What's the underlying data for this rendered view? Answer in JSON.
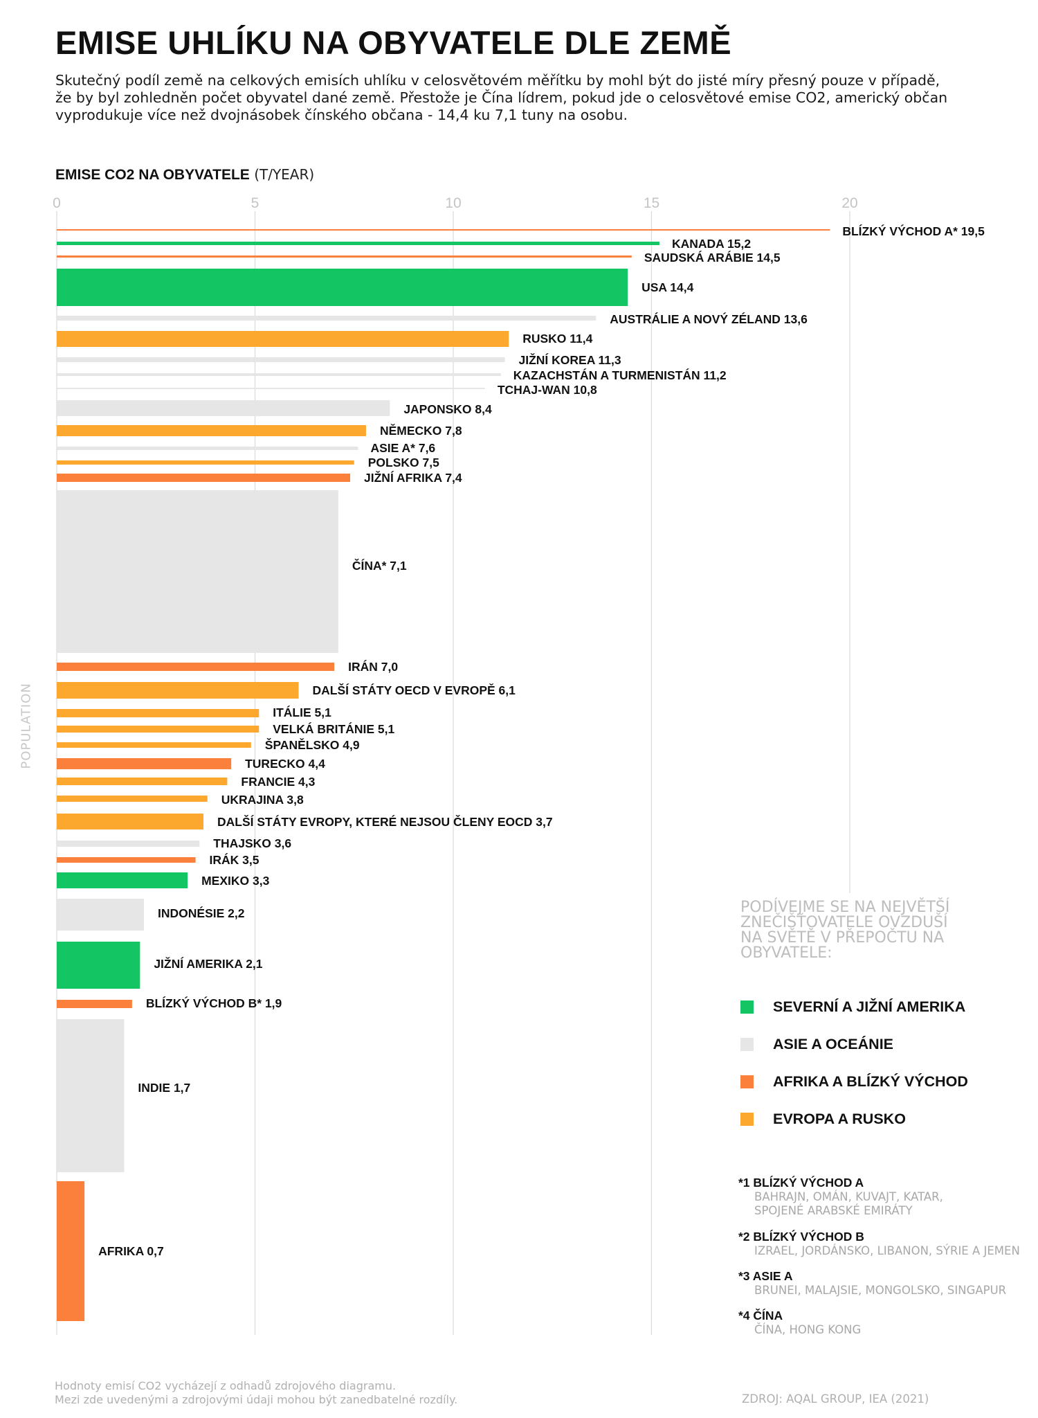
{
  "title": "EMISE UHLÍKU NA OBYVATELE DLE ZEMĚ",
  "subtitle": "Skutečný podíl země na celkových emisích uhlíku v celosvětovém měřítku by mohl být do jisté míry přesný pouze v případě, že by byl zohledněn počet obyvatel dané země. Přestože je Čína lídrem, pokud jde o celosvětové emise CO2, americký občan vyprodukuje více než dvojnásobek čínského občana - 14,4 ku 7,1 tuny na osobu.",
  "colors": {
    "americas": "#14c564",
    "asia": "#e6e6e6",
    "africa_me": "#fb803c",
    "europe": "#fca72d",
    "grid": "#d9d9d9",
    "tick": "#c4c4c4"
  },
  "chart_data": {
    "type": "bar",
    "orientation": "horizontal",
    "title": "EMISE CO2 NA OBYVATELE",
    "title_unit": "(T/YEAR)",
    "xlabel": "EMISE CO2 NA OBYVATELE (T/YEAR)",
    "ylabel": "POPULATION",
    "xlim": [
      0,
      20
    ],
    "xticks": [
      0,
      5,
      10,
      15,
      20
    ],
    "grid": true,
    "note": "bar thickness is proportional to population",
    "bars": [
      {
        "label": "BLÍZKÝ VÝCHOD A* 19,5",
        "value": 19.5,
        "region": "africa_me"
      },
      {
        "label": "KANADA 15,2",
        "value": 15.2,
        "region": "americas"
      },
      {
        "label": "SAUDSKÁ ARÁBIE 14,5",
        "value": 14.5,
        "region": "africa_me"
      },
      {
        "label": "USA 14,4",
        "value": 14.4,
        "region": "americas"
      },
      {
        "label": "AUSTRÁLIE A NOVÝ ZÉLAND 13,6",
        "value": 13.6,
        "region": "asia"
      },
      {
        "label": "RUSKO 11,4",
        "value": 11.4,
        "region": "europe"
      },
      {
        "label": "JIŽNÍ KOREA 11,3",
        "value": 11.3,
        "region": "asia"
      },
      {
        "label": "KAZACHSTÁN A TURMENISTÁN 11,2",
        "value": 11.2,
        "region": "asia"
      },
      {
        "label": "TCHAJ-WAN 10,8",
        "value": 10.8,
        "region": "asia"
      },
      {
        "label": "JAPONSKO 8,4",
        "value": 8.4,
        "region": "asia"
      },
      {
        "label": "NĚMECKO 7,8",
        "value": 7.8,
        "region": "europe"
      },
      {
        "label": "ASIE A* 7,6",
        "value": 7.6,
        "region": "asia"
      },
      {
        "label": "POLSKO 7,5",
        "value": 7.5,
        "region": "europe"
      },
      {
        "label": "JIŽNÍ AFRIKA 7,4",
        "value": 7.4,
        "region": "africa_me"
      },
      {
        "label": "ČÍNA* 7,1",
        "value": 7.1,
        "region": "asia"
      },
      {
        "label": "IRÁN 7,0",
        "value": 7.0,
        "region": "africa_me"
      },
      {
        "label": "DALŠÍ STÁTY OECD V EVROPĚ 6,1",
        "value": 6.1,
        "region": "europe"
      },
      {
        "label": "ITÁLIE 5,1",
        "value": 5.1,
        "region": "europe"
      },
      {
        "label": "VELKÁ BRITÁNIE 5,1",
        "value": 5.1,
        "region": "europe"
      },
      {
        "label": "ŠPANĚLSKO 4,9",
        "value": 4.9,
        "region": "europe"
      },
      {
        "label": "TURECKO 4,4",
        "value": 4.4,
        "region": "africa_me"
      },
      {
        "label": "FRANCIE 4,3",
        "value": 4.3,
        "region": "europe"
      },
      {
        "label": "UKRAJINA 3,8",
        "value": 3.8,
        "region": "europe"
      },
      {
        "label": "DALŠÍ STÁTY EVROPY, KTERÉ NEJSOU ČLENY EOCD 3,7",
        "value": 3.7,
        "region": "europe"
      },
      {
        "label": "THAJSKO 3,6",
        "value": 3.6,
        "region": "asia"
      },
      {
        "label": "IRÁK 3,5",
        "value": 3.5,
        "region": "africa_me"
      },
      {
        "label": "MEXIKO 3,3",
        "value": 3.3,
        "region": "americas"
      },
      {
        "label": "INDONÉSIE 2,2",
        "value": 2.2,
        "region": "asia"
      },
      {
        "label": "JIŽNÍ AMERIKA 2,1",
        "value": 2.1,
        "region": "americas"
      },
      {
        "label": "BLÍZKÝ VÝCHOD B* 1,9",
        "value": 1.9,
        "region": "africa_me"
      },
      {
        "label": "INDIE 1,7",
        "value": 1.7,
        "region": "asia"
      },
      {
        "label": "AFRIKA 0,7",
        "value": 0.7,
        "region": "africa_me"
      }
    ]
  },
  "legend": {
    "intro": "PODÍVEJME SE NA NEJVĚTŠÍ ZNEČIŠŤOVATELE OVZDUŠÍ NA SVĚTĚ V PŘEPOČTU NA OBYVATELE:",
    "items": [
      {
        "label": "SEVERNÍ A JIŽNÍ AMERIKA",
        "region": "americas"
      },
      {
        "label": "ASIE A OCEÁNIE",
        "region": "asia"
      },
      {
        "label": "AFRIKA A BLÍZKÝ VÝCHOD",
        "region": "africa_me"
      },
      {
        "label": "EVROPA A RUSKO",
        "region": "europe"
      }
    ]
  },
  "notes": [
    {
      "title": "*1 BLÍZKÝ VÝCHOD A",
      "lines": [
        "BAHRAJN, OMÁN, KUVAJT, KATAR,",
        "SPOJENÉ ARABSKÉ EMIRÁTY"
      ]
    },
    {
      "title": "*2 BLÍZKÝ VÝCHOD B",
      "lines": [
        "IZRAEL, JORDÁNSKO, LIBANON, SÝRIE A JEMEN"
      ]
    },
    {
      "title": "*3 ASIE A",
      "lines": [
        "BRUNEI, MALAJSIE, MONGOLSKO, SINGAPUR"
      ]
    },
    {
      "title": "*4 ČÍNA",
      "lines": [
        "ČÍNA, HONG KONG"
      ]
    }
  ],
  "footer": {
    "line1": "Hodnoty emisí CO2 vycházejí z odhadů zdrojového diagramu.",
    "line2": "Mezi zde uvedenými a zdrojovými údaji mohou být zanedbatelné rozdíly.",
    "source": "ZDROJ: AQAL GROUP, IEA (2021)"
  }
}
